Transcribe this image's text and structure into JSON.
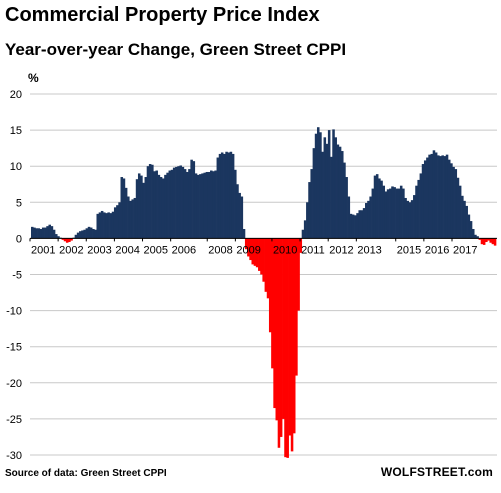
{
  "title": "Commercial Property Price Index",
  "subtitle": "Year-over-year Change, Green Street CPPI",
  "source": "Source of data: Green Street CPPI",
  "credit": "WOLFSTREET.com",
  "colors": {
    "positive": "#1b365f",
    "negative": "#ff0000",
    "grid": "#c8c8c8"
  },
  "chart_data": {
    "type": "bar",
    "ylabel": "%",
    "ylim": [
      -30,
      20
    ],
    "yticks": [
      20,
      15,
      10,
      5,
      0,
      -5,
      -10,
      -15,
      -20,
      -25,
      -30
    ],
    "grid": true,
    "x_start_year": 2001,
    "x_end_year": 2017.6,
    "xtick_labels": [
      "2001",
      "2002",
      "2003",
      "2004",
      "2005",
      "2006",
      "2008",
      "2009",
      "2010",
      "2011",
      "2012",
      "2013",
      "2015",
      "2016",
      "2017"
    ],
    "series": [
      {
        "values": [
          1.6,
          1.5,
          1.4,
          1.4,
          1.3,
          1.5,
          1.5,
          1.7,
          1.9,
          1.7,
          1.2,
          0.6,
          0.3,
          0.1,
          -0.2,
          -0.4,
          -0.6,
          -0.5,
          -0.3,
          0.1,
          0.5,
          0.8,
          1.0,
          1.1,
          1.2,
          1.4,
          1.6,
          1.5,
          1.3,
          1.2,
          3.4,
          3.6,
          3.8,
          3.6,
          3.5,
          3.6,
          3.5,
          3.7,
          4.3,
          4.6,
          5.0,
          8.5,
          8.3,
          7.0,
          5.8,
          5.2,
          5.4,
          5.6,
          8.2,
          9.0,
          8.7,
          7.7,
          8.5,
          10.0,
          10.3,
          10.2,
          9.3,
          9.4,
          8.8,
          8.5,
          8.3,
          8.8,
          9.1,
          9.4,
          9.5,
          9.8,
          9.9,
          10.0,
          10.1,
          9.9,
          9.6,
          9.2,
          9.6,
          10.9,
          10.7,
          9.0,
          8.8,
          8.9,
          9.0,
          9.1,
          9.2,
          9.2,
          9.4,
          9.3,
          9.4,
          11.2,
          11.7,
          11.9,
          11.7,
          12.0,
          11.9,
          12.0,
          11.7,
          9.5,
          7.5,
          6.3,
          5.8,
          1.3,
          -1.5,
          -2.5,
          -3.0,
          -3.6,
          -3.8,
          -4.0,
          -4.5,
          -5.0,
          -6.0,
          -7.4,
          -8.3,
          -13.0,
          -18.0,
          -23.5,
          -25.2,
          -29.0,
          -27.5,
          -25.0,
          -30.3,
          -30.4,
          -27.3,
          -29.5,
          -27.0,
          -19.0,
          -10.0,
          -2.0,
          1.2,
          2.5,
          5.0,
          7.8,
          9.6,
          12.5,
          14.5,
          15.4,
          14.7,
          12.0,
          14.0,
          13.1,
          15.0,
          11.3,
          15.1,
          14.0,
          13.0,
          12.7,
          12.1,
          10.5,
          8.5,
          5.8,
          3.4,
          3.3,
          3.2,
          3.5,
          3.9,
          3.9,
          4.2,
          4.9,
          5.2,
          5.8,
          6.9,
          8.7,
          8.9,
          8.3,
          8.0,
          7.3,
          6.5,
          6.8,
          6.9,
          7.2,
          7.1,
          6.9,
          6.9,
          7.3,
          6.9,
          5.6,
          5.2,
          5.0,
          5.3,
          6.0,
          7.3,
          8.1,
          9.0,
          10.3,
          10.8,
          11.2,
          11.6,
          11.7,
          12.2,
          11.9,
          11.5,
          11.4,
          11.5,
          11.4,
          11.6,
          10.9,
          10.4,
          9.9,
          9.6,
          8.4,
          7.3,
          5.9,
          5.2,
          4.5,
          3.3,
          2.4,
          1.3,
          0.5,
          0.3,
          -0.2,
          -0.8,
          -0.9,
          -0.5,
          -0.3,
          -0.6,
          -0.8,
          -1.0
        ]
      }
    ]
  }
}
